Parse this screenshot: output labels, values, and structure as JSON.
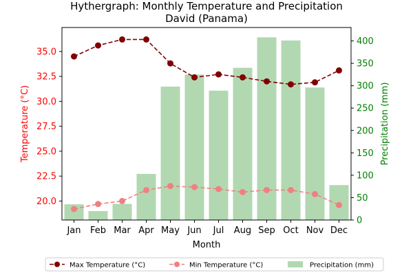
{
  "chart_data": {
    "type": "bar+line",
    "title": "Hythergraph: Monthly Temperature and Precipitation\nDavid (Panama)",
    "xlabel": "Month",
    "ylabel_left": "Temperature (°C)",
    "ylabel_right": "Precipitation (mm)",
    "categories": [
      "Jan",
      "Feb",
      "Mar",
      "Apr",
      "May",
      "Jun",
      "Jul",
      "Aug",
      "Sep",
      "Oct",
      "Nov",
      "Dec"
    ],
    "ylim_left": [
      18.1,
      37.4
    ],
    "yticks_left": [
      "20.0",
      "22.5",
      "25.0",
      "27.5",
      "30.0",
      "32.5",
      "35.0"
    ],
    "ylim_right": [
      0,
      430
    ],
    "yticks_right": [
      "0",
      "50",
      "100",
      "150",
      "200",
      "250",
      "300",
      "350",
      "400"
    ],
    "grid": false,
    "legend_position": "bottom-center",
    "colors": {
      "max": "#800000",
      "min": "#f08080",
      "precip": "#b2d8b2",
      "left_axis": "#ff0000",
      "right_axis": "#008000"
    },
    "series": [
      {
        "name": "Max Temperature (°C)",
        "kind": "line",
        "axis": "left",
        "values": [
          34.5,
          35.6,
          36.2,
          36.2,
          33.8,
          32.4,
          32.7,
          32.4,
          32.0,
          31.7,
          31.9,
          33.1
        ]
      },
      {
        "name": "Min Temperature (°C)",
        "kind": "line",
        "axis": "left",
        "values": [
          19.2,
          19.7,
          20.0,
          21.1,
          21.5,
          21.4,
          21.2,
          20.9,
          21.1,
          21.1,
          20.7,
          19.6
        ]
      },
      {
        "name": "Precipitation (mm)",
        "kind": "bar",
        "axis": "right",
        "values": [
          35,
          20,
          36,
          103,
          298,
          325,
          289,
          340,
          408,
          401,
          296,
          78
        ]
      }
    ]
  }
}
